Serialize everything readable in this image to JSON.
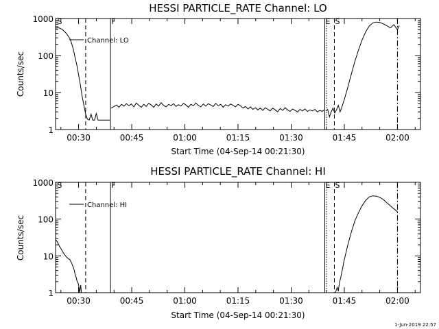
{
  "footer": {
    "timestamp": "1-Jun-2019 22:57"
  },
  "chart_data": [
    {
      "type": "line",
      "title": "HESSI PARTICLE_RATE Channel: LO",
      "xlabel": "Start Time (04-Sep-14 00:21:30)",
      "ylabel": "Counts/sec",
      "yscale": "log",
      "xlim": [
        23.5,
        126.5
      ],
      "ylim": [
        1,
        1000
      ],
      "x_ticks": [
        30,
        45,
        60,
        75,
        90,
        105,
        120
      ],
      "x_tick_labels": [
        "00:30",
        "00:45",
        "01:00",
        "01:15",
        "01:30",
        "01:45",
        "02:00"
      ],
      "y_ticks": [
        1,
        10,
        100,
        1000
      ],
      "y_tick_labels": [
        "1",
        "10",
        "100",
        "1000"
      ],
      "legend": {
        "entries": [
          "Channel: LO"
        ],
        "position": "top-left"
      },
      "markers": [
        {
          "x": 23.8,
          "label": "S",
          "style": "none"
        },
        {
          "x": 32.0,
          "label": "",
          "style": "dashed"
        },
        {
          "x": 39.0,
          "label": "F",
          "style": "solid"
        },
        {
          "x": 99.5,
          "label": "E",
          "style": "solid"
        },
        {
          "x": 100.0,
          "label": "",
          "style": "dotted"
        },
        {
          "x": 102.2,
          "label": "S",
          "style": "dashed"
        },
        {
          "x": 120.0,
          "label": "",
          "style": "dashdot"
        }
      ],
      "series": [
        {
          "name": "Channel: LO",
          "segments": [
            {
              "x": [
                23.5,
                24.5,
                25.5,
                26.5,
                27.5,
                28.0,
                28.5,
                29.0,
                29.5,
                30.0,
                30.5,
                31.0,
                31.5,
                32.0,
                32.5,
                33.0,
                33.5,
                34.0,
                34.5,
                35.0,
                35.5,
                36.0,
                37.0,
                38.0,
                38.8
              ],
              "y": [
                550,
                560,
                500,
                400,
                290,
                220,
                150,
                90,
                55,
                30,
                16,
                8,
                4.5,
                2.6,
                1.9,
                1.8,
                2.6,
                1.8,
                1.8,
                2.7,
                1.8,
                1.8,
                1.8,
                1.8,
                1.8
              ]
            },
            {
              "x": [
                39.2,
                40.0,
                40.7,
                41.4,
                42.1,
                42.8,
                43.5,
                44.2,
                44.9,
                45.6,
                46.3,
                47.0,
                47.7,
                48.4,
                49.1,
                49.8,
                50.5,
                51.2,
                51.9,
                52.6,
                53.3,
                54.0,
                54.7,
                55.4,
                56.1,
                56.8,
                57.5,
                58.2,
                58.9,
                59.6,
                60.3,
                61.0,
                61.7,
                62.4,
                63.1,
                63.8,
                64.5,
                65.2,
                65.9,
                66.6,
                67.3,
                68.0,
                68.7,
                69.4,
                70.1,
                70.8,
                71.5,
                72.2,
                72.9,
                73.6,
                74.3,
                75.0,
                75.7,
                76.4,
                77.1,
                77.8,
                78.5,
                79.2,
                79.9,
                80.6,
                81.3,
                82.0,
                82.7,
                83.4,
                84.1,
                84.8,
                85.5,
                86.2,
                86.9,
                87.6,
                88.3,
                89.0,
                89.7,
                90.4,
                91.1,
                91.8,
                92.5,
                93.2,
                93.9,
                94.6,
                95.3,
                96.0,
                96.7,
                97.4,
                98.1,
                98.8,
                99.3
              ],
              "y": [
                3.8,
                4.2,
                4.6,
                4.0,
                4.8,
                4.3,
                5.0,
                4.4,
                4.9,
                4.1,
                5.2,
                4.5,
                4.0,
                4.8,
                4.2,
                5.1,
                4.6,
                4.0,
                4.9,
                4.3,
                5.3,
                4.5,
                4.1,
                4.8,
                4.4,
                5.0,
                4.2,
                4.7,
                4.3,
                5.1,
                4.6,
                4.0,
                4.8,
                4.4,
                5.2,
                4.5,
                4.1,
                4.9,
                4.3,
                5.0,
                4.6,
                4.2,
                5.1,
                4.4,
                4.8,
                4.0,
                4.7,
                4.3,
                4.9,
                4.5,
                4.1,
                4.8,
                4.4,
                3.8,
                4.2,
                3.6,
                4.1,
                3.5,
                3.9,
                3.4,
                3.8,
                3.3,
                3.9,
                3.5,
                3.2,
                3.8,
                3.4,
                3.0,
                3.7,
                3.3,
                3.9,
                3.4,
                3.1,
                3.6,
                3.3,
                3.0,
                3.5,
                3.2,
                3.6,
                3.1,
                3.4,
                3.2,
                3.5,
                3.0,
                3.3,
                3.1,
                3.4
              ]
            },
            {
              "x": [
                99.8,
                100.3,
                100.8,
                101.3,
                101.8,
                102.3,
                102.8,
                103.3,
                103.8,
                104.3,
                105.0,
                106.0,
                107.0,
                108.0,
                109.0,
                110.0,
                111.0,
                112.0,
                113.0,
                114.0,
                115.0,
                116.0,
                117.0,
                118.0,
                118.5,
                119.0,
                119.5,
                120.0,
                120.5
              ],
              "y": [
                3.2,
                3.5,
                2.2,
                3.0,
                3.8,
                2.8,
                3.4,
                4.5,
                3.0,
                4.0,
                6.5,
                14,
                32,
                70,
                140,
                260,
                430,
                620,
                760,
                800,
                780,
                720,
                640,
                560,
                620,
                680,
                580,
                500,
                640
              ]
            }
          ]
        }
      ]
    },
    {
      "type": "line",
      "title": "HESSI PARTICLE_RATE Channel: HI",
      "xlabel": "Start Time (04-Sep-14 00:21:30)",
      "ylabel": "Counts/sec",
      "yscale": "log",
      "xlim": [
        23.5,
        126.5
      ],
      "ylim": [
        1,
        1000
      ],
      "x_ticks": [
        30,
        45,
        60,
        75,
        90,
        105,
        120
      ],
      "x_tick_labels": [
        "00:30",
        "00:45",
        "01:00",
        "01:15",
        "01:30",
        "01:45",
        "02:00"
      ],
      "y_ticks": [
        1,
        10,
        100,
        1000
      ],
      "y_tick_labels": [
        "1",
        "10",
        "100",
        "1000"
      ],
      "legend": {
        "entries": [
          "Channel: HI"
        ],
        "position": "top-left"
      },
      "markers": [
        {
          "x": 23.8,
          "label": "S",
          "style": "none"
        },
        {
          "x": 32.0,
          "label": "",
          "style": "dashed"
        },
        {
          "x": 39.0,
          "label": "F",
          "style": "solid"
        },
        {
          "x": 99.5,
          "label": "E",
          "style": "solid"
        },
        {
          "x": 100.0,
          "label": "",
          "style": "dotted"
        },
        {
          "x": 102.2,
          "label": "S",
          "style": "dashed"
        },
        {
          "x": 120.0,
          "label": "",
          "style": "dashdot"
        }
      ],
      "series": [
        {
          "name": "Channel: HI",
          "segments": [
            {
              "x": [
                23.5,
                24.0,
                24.5,
                25.0,
                25.5,
                26.0,
                26.5,
                27.0,
                27.5,
                28.0,
                28.5,
                28.8,
                29.0,
                29.3,
                29.6,
                29.9,
                30.1,
                30.3,
                30.6,
                30.8
              ],
              "y": [
                28,
                24,
                19,
                16,
                13,
                11,
                9.5,
                8.5,
                8.0,
                6.5,
                5.0,
                4.0,
                3.2,
                2.6,
                2.0,
                1.8,
                1.4,
                1.0,
                1.6,
                1.0
              ]
            },
            {
              "x": [
                102.5,
                103.0,
                103.3,
                103.6,
                104.0,
                104.5,
                105.0,
                106.0,
                107.0,
                108.0,
                109.0,
                110.0,
                111.0,
                112.0,
                113.0,
                114.0,
                115.0,
                116.0,
                117.0,
                118.0,
                119.0,
                120.0
              ],
              "y": [
                1.0,
                1.4,
                1.1,
                1.8,
                2.6,
                4.5,
                8,
                20,
                45,
                90,
                150,
                230,
                320,
                400,
                430,
                420,
                390,
                340,
                280,
                230,
                190,
                160
              ]
            }
          ]
        }
      ]
    }
  ]
}
